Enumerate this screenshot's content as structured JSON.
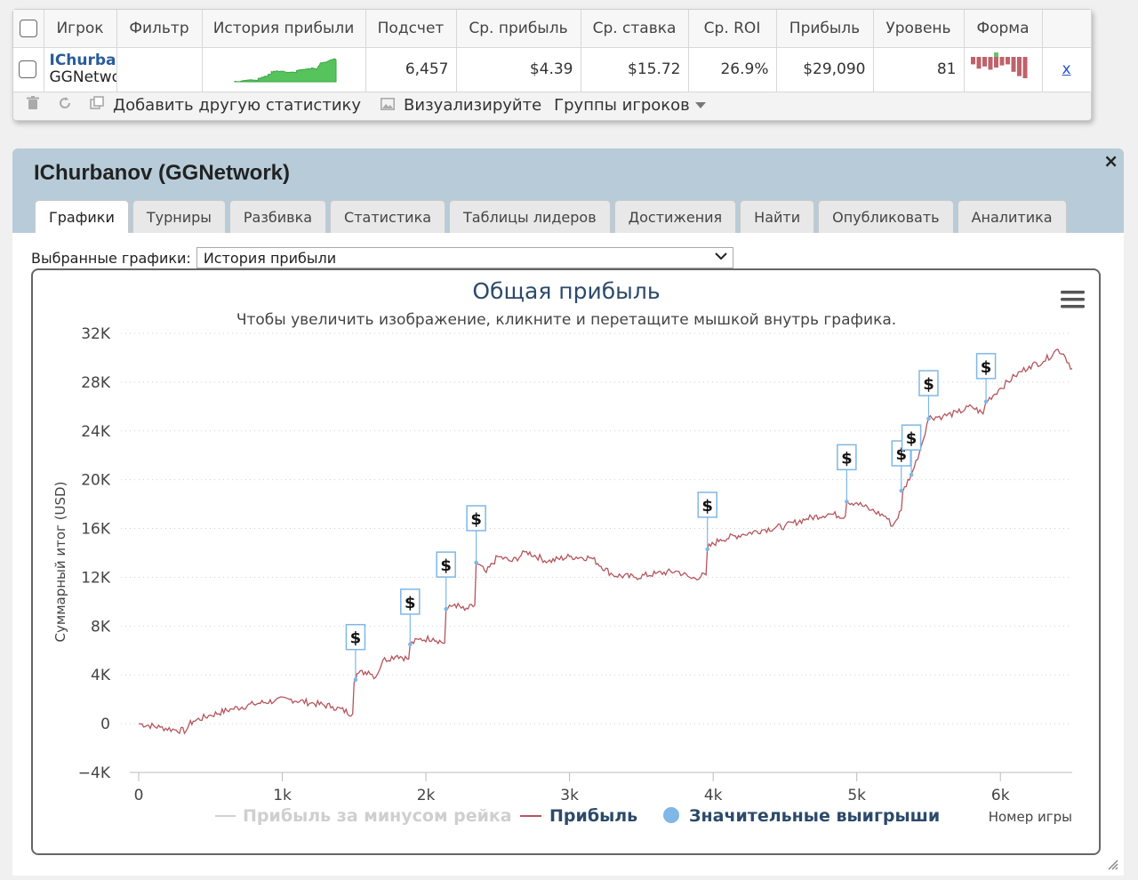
{
  "stats_table": {
    "columns": [
      "Игрок",
      "Фильтр",
      "История прибыли",
      "Подсчет",
      "Ср. прибыль",
      "Ср. ставка",
      "Ср. ROI",
      "Прибыль",
      "Уровень",
      "Форма"
    ],
    "row": {
      "player_name": "IChurbanov",
      "network": "GGNetwork",
      "filter": "",
      "count": "6,457",
      "avg_profit": "$4.39",
      "avg_stake": "$15.72",
      "avg_roi": "26.9%",
      "profit": "$29,090",
      "level": "81",
      "remove_label": "x",
      "form_bars": [
        0.35,
        0.55,
        0.45,
        0.6,
        0.5,
        0.4,
        0.35,
        0.7,
        0.9,
        1.0
      ],
      "form_color": "#c0626b",
      "form_highlight_color": "#67c26e"
    },
    "toolbar": {
      "add_stat": "Добавить другую статистику",
      "visualize": "Визуализируйте",
      "player_groups": "Группы игроков"
    },
    "icons": [
      "trash-icon",
      "refresh-icon",
      "copy-icon",
      "image-icon"
    ]
  },
  "player_panel": {
    "title": "IChurbanov (GGNetwork)",
    "close_label": "×",
    "tabs": [
      "Графики",
      "Турниры",
      "Разбивка",
      "Статистика",
      "Таблицы лидеров",
      "Достижения",
      "Найти",
      "Опубликовать",
      "Аналитика"
    ],
    "active_tab": "Графики",
    "selected_graphs_label": "Выбранные графики:",
    "selected_graph": "История прибыли"
  },
  "chart_data": {
    "type": "line",
    "title": "Общая прибыль",
    "subtitle": "Чтобы увеличить изображение, кликните и перетащите мышкой внутрь графика.",
    "xlabel": "Номер игры",
    "ylabel": "Суммарный итог (USD)",
    "xlim": [
      0,
      6500
    ],
    "ylim": [
      -4000,
      32000
    ],
    "x_ticks": [
      0,
      1000,
      2000,
      3000,
      4000,
      5000,
      6000
    ],
    "x_tick_labels": [
      "0",
      "1k",
      "2k",
      "3k",
      "4k",
      "5k",
      "6k"
    ],
    "y_ticks": [
      -4000,
      0,
      4000,
      8000,
      12000,
      16000,
      20000,
      24000,
      28000,
      32000
    ],
    "y_tick_labels": [
      "−4K",
      "0",
      "4K",
      "8K",
      "12K",
      "16K",
      "20K",
      "24K",
      "28K",
      "32K"
    ],
    "grid": true,
    "series": [
      {
        "name": "Прибыль",
        "color": "#b5555c",
        "x": [
          0,
          150,
          250,
          330,
          350,
          380,
          500,
          650,
          800,
          950,
          1050,
          1200,
          1350,
          1490,
          1500,
          1520,
          1600,
          1650,
          1700,
          1800,
          1880,
          1890,
          1950,
          2050,
          2130,
          2140,
          2200,
          2270,
          2340,
          2350,
          2420,
          2500,
          2600,
          2700,
          2850,
          3000,
          3150,
          3300,
          3450,
          3600,
          3750,
          3850,
          3950,
          3960,
          4050,
          4200,
          4350,
          4500,
          4650,
          4800,
          4920,
          4930,
          5000,
          5100,
          5200,
          5250,
          5310,
          5320,
          5380,
          5400,
          5450,
          5500,
          5600,
          5700,
          5800,
          5880,
          5900,
          6000,
          6100,
          6200,
          6300,
          6400,
          6440,
          6500
        ],
        "y": [
          0,
          -300,
          -500,
          -600,
          -100,
          200,
          700,
          1200,
          1600,
          1900,
          2000,
          1700,
          1400,
          800,
          3400,
          4100,
          4300,
          3800,
          5200,
          5600,
          5300,
          6500,
          6900,
          7000,
          6600,
          9300,
          9800,
          9300,
          9700,
          13200,
          12400,
          13700,
          13300,
          14100,
          13300,
          13700,
          13600,
          12200,
          12000,
          12300,
          12500,
          11900,
          12200,
          14400,
          15100,
          15500,
          15900,
          16200,
          16800,
          17200,
          17000,
          18200,
          18100,
          17500,
          17000,
          16200,
          17500,
          19000,
          20500,
          21000,
          22800,
          25100,
          25200,
          25500,
          26000,
          25400,
          26400,
          27500,
          28500,
          29300,
          29700,
          30700,
          30300,
          29100
        ]
      },
      {
        "name": "Прибыль за минусом рейка",
        "color": "#d0d0d0",
        "x": [],
        "y": []
      }
    ],
    "big_wins": {
      "name": "Значительные выигрыши",
      "color": "#7fb7e6",
      "marker_label": "$",
      "x": [
        1510,
        1890,
        2140,
        2350,
        3960,
        4930,
        5310,
        5380,
        5500,
        5900
      ],
      "y": [
        3600,
        6500,
        9400,
        13200,
        14300,
        18200,
        19100,
        20400,
        25000,
        26400
      ]
    },
    "legend": [
      "Прибыль за минусом рейка",
      "Прибыль",
      "Значительные выигрыши"
    ],
    "legend_position": "bottom"
  }
}
